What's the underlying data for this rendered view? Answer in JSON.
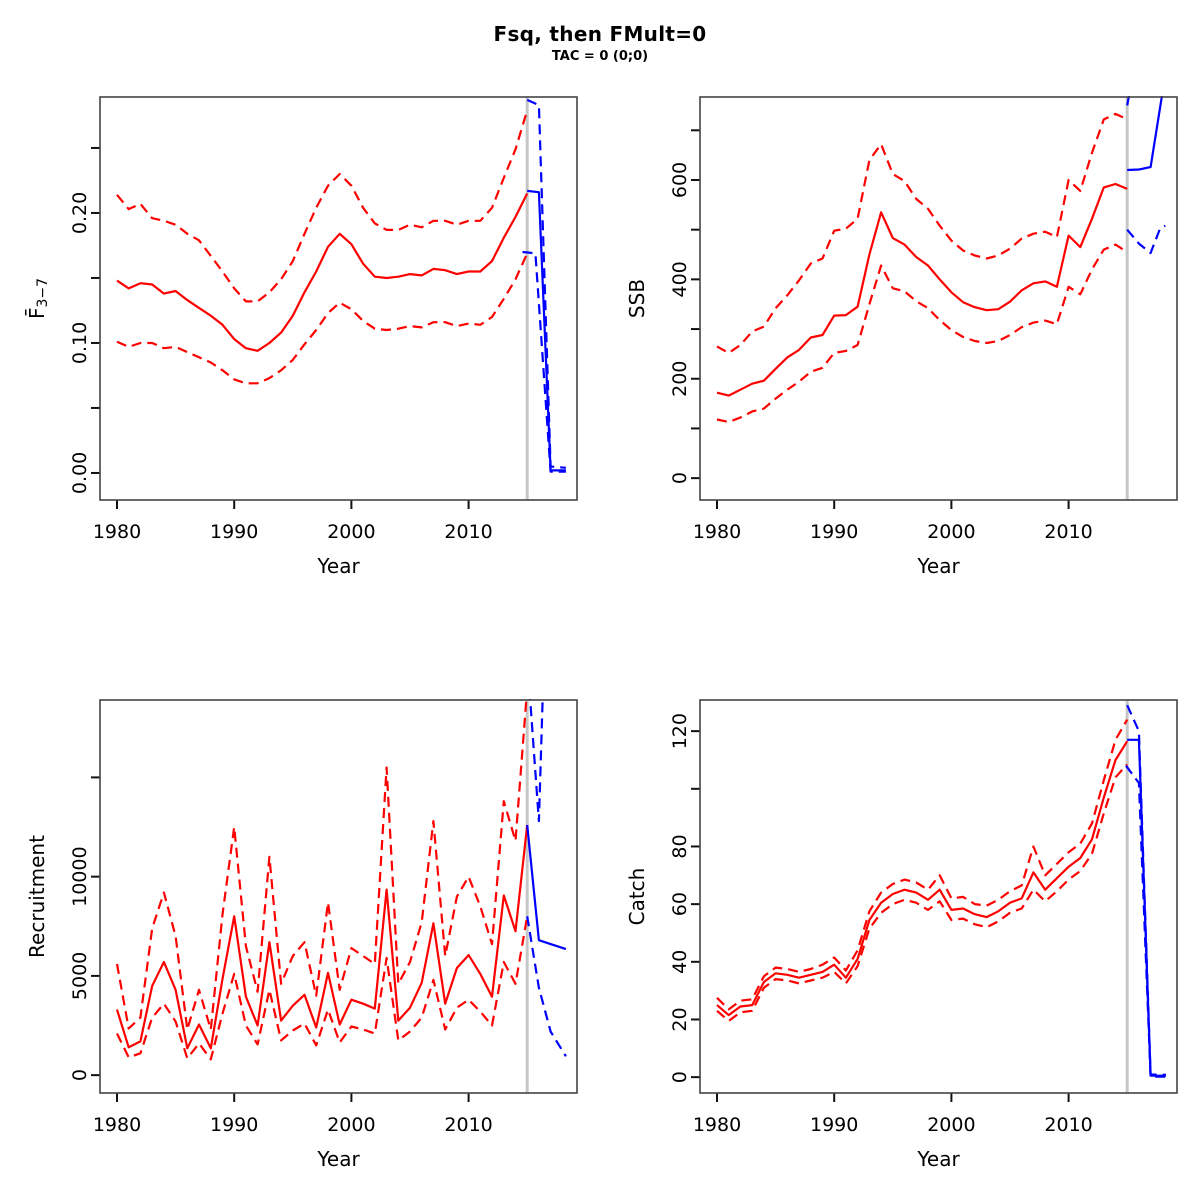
{
  "title": "Fsq, then FMult=0",
  "subtitle": "TAC = 0 (0;0)",
  "colors": {
    "history_line": "#ff0000",
    "projection_line": "#0000ff",
    "divider_line": "#c6c6c6",
    "frame": "#444444",
    "tick": "#111111",
    "text": "#000000",
    "background": "#ffffff"
  },
  "years_history": [
    1980,
    1981,
    1982,
    1983,
    1984,
    1985,
    1986,
    1987,
    1988,
    1989,
    1990,
    1991,
    1992,
    1993,
    1994,
    1995,
    1996,
    1997,
    1998,
    1999,
    2000,
    2001,
    2002,
    2003,
    2004,
    2005,
    2006,
    2007,
    2008,
    2009,
    2010,
    2011,
    2012,
    2013,
    2014,
    2015
  ],
  "chart_data": [
    {
      "id": "fbar",
      "type": "line",
      "ylabel": "F̄",
      "ylabel_sub": "3−7",
      "xlabel": "Year",
      "xlim": [
        1978.55,
        2019.25
      ],
      "ylim": [
        -0.0208,
        0.2892
      ],
      "divider_x": 2015,
      "xticks": [
        {
          "v": 1980,
          "label": "1980"
        },
        {
          "v": 1990,
          "label": "1990"
        },
        {
          "v": 2000,
          "label": "2000"
        },
        {
          "v": 2010,
          "label": "2010"
        }
      ],
      "yticks": [
        {
          "v": 0,
          "label": "0.00"
        },
        {
          "v": 0.05,
          "label": ""
        },
        {
          "v": 0.1,
          "label": "0.10"
        },
        {
          "v": 0.15,
          "label": ""
        },
        {
          "v": 0.2,
          "label": "0.20"
        },
        {
          "v": 0.25,
          "label": ""
        }
      ],
      "series": [
        {
          "name": "fbar-median-history",
          "role": "history",
          "line": "solid",
          "values": [
            0.148,
            0.142,
            0.146,
            0.145,
            0.138,
            0.14,
            0.133,
            0.127,
            0.121,
            0.114,
            0.103,
            0.096,
            0.094,
            0.1,
            0.108,
            0.121,
            0.139,
            0.155,
            0.174,
            0.184,
            0.176,
            0.161,
            0.151,
            0.15,
            0.151,
            0.153,
            0.152,
            0.157,
            0.156,
            0.153,
            0.155,
            0.155,
            0.163,
            0.181,
            0.197,
            0.215
          ]
        },
        {
          "name": "fbar-upper-history",
          "role": "history",
          "line": "dashed",
          "values": [
            0.214,
            0.203,
            0.207,
            0.196,
            0.194,
            0.191,
            0.184,
            0.179,
            0.167,
            0.155,
            0.142,
            0.132,
            0.132,
            0.139,
            0.149,
            0.163,
            0.184,
            0.204,
            0.221,
            0.23,
            0.221,
            0.204,
            0.192,
            0.187,
            0.187,
            0.191,
            0.189,
            0.194,
            0.194,
            0.191,
            0.194,
            0.194,
            0.204,
            0.227,
            0.249,
            0.279
          ]
        },
        {
          "name": "fbar-lower-history",
          "role": "history",
          "line": "dashed",
          "values": [
            0.101,
            0.097,
            0.1,
            0.1,
            0.096,
            0.097,
            0.093,
            0.089,
            0.085,
            0.079,
            0.072,
            0.069,
            0.069,
            0.073,
            0.079,
            0.087,
            0.099,
            0.11,
            0.123,
            0.131,
            0.126,
            0.117,
            0.111,
            0.11,
            0.111,
            0.113,
            0.112,
            0.116,
            0.116,
            0.113,
            0.115,
            0.114,
            0.12,
            0.134,
            0.149,
            0.169
          ]
        },
        {
          "name": "fbar-median-projection",
          "role": "projection",
          "line": "solid",
          "points": [
            [
              2015,
              0.217
            ],
            [
              2016,
              0.216
            ],
            [
              2017,
              0.002
            ],
            [
              2018.3,
              0.002
            ]
          ]
        },
        {
          "name": "fbar-upper-projection",
          "role": "projection",
          "line": "dashed",
          "points": [
            [
              2015,
              0.287
            ],
            [
              2016,
              0.283
            ],
            [
              2017,
              0.005
            ],
            [
              2018.3,
              0.004
            ]
          ]
        },
        {
          "name": "fbar-lower-projection",
          "role": "projection",
          "line": "dashed",
          "points": [
            [
              2014.6,
              0.17
            ],
            [
              2015.7,
              0.169
            ],
            [
              2017,
              0.001
            ],
            [
              2018.3,
              0.001
            ]
          ]
        }
      ]
    },
    {
      "id": "ssb",
      "type": "line",
      "ylabel": "SSB",
      "ylabel_sub": "",
      "xlabel": "Year",
      "xlim": [
        1978.55,
        2019.25
      ],
      "ylim": [
        -44,
        767
      ],
      "divider_x": 2015,
      "xticks": [
        {
          "v": 1980,
          "label": "1980"
        },
        {
          "v": 1990,
          "label": "1990"
        },
        {
          "v": 2000,
          "label": "2000"
        },
        {
          "v": 2010,
          "label": "2010"
        }
      ],
      "yticks": [
        {
          "v": 0,
          "label": "0"
        },
        {
          "v": 100,
          "label": ""
        },
        {
          "v": 200,
          "label": "200"
        },
        {
          "v": 300,
          "label": ""
        },
        {
          "v": 400,
          "label": "400"
        },
        {
          "v": 500,
          "label": ""
        },
        {
          "v": 600,
          "label": "600"
        },
        {
          "v": 700,
          "label": ""
        }
      ],
      "series": [
        {
          "name": "ssb-median-history",
          "role": "history",
          "line": "solid",
          "values": [
            172,
            166,
            178,
            190,
            196,
            220,
            243,
            258,
            283,
            288,
            327,
            328,
            345,
            450,
            535,
            483,
            470,
            445,
            428,
            400,
            374,
            354,
            344,
            338,
            340,
            355,
            378,
            392,
            396,
            385,
            488,
            465,
            522,
            585,
            592,
            582
          ]
        },
        {
          "name": "ssb-upper-history",
          "role": "history",
          "line": "dashed",
          "values": [
            265,
            252,
            268,
            295,
            305,
            342,
            368,
            398,
            432,
            442,
            498,
            502,
            522,
            640,
            672,
            612,
            598,
            562,
            542,
            508,
            478,
            458,
            448,
            442,
            448,
            462,
            482,
            492,
            496,
            485,
            600,
            578,
            655,
            722,
            733,
            722
          ]
        },
        {
          "name": "ssb-lower-history",
          "role": "history",
          "line": "dashed",
          "values": [
            118,
            113,
            122,
            134,
            140,
            160,
            178,
            194,
            214,
            222,
            252,
            256,
            268,
            350,
            428,
            382,
            376,
            356,
            342,
            318,
            298,
            284,
            276,
            272,
            276,
            288,
            304,
            313,
            317,
            310,
            385,
            370,
            420,
            460,
            470,
            455
          ]
        },
        {
          "name": "ssb-median-projection",
          "role": "projection",
          "line": "solid",
          "points": [
            [
              2015,
              620
            ],
            [
              2016,
              621
            ],
            [
              2017,
              626
            ],
            [
              2018,
              775
            ]
          ]
        },
        {
          "name": "ssb-upper-projection",
          "role": "projection",
          "line": "dashed",
          "points": [
            [
              2015,
              750
            ],
            [
              2015.55,
              820
            ]
          ]
        },
        {
          "name": "ssb-lower-projection",
          "role": "projection",
          "line": "dashed",
          "points": [
            [
              2015,
              500
            ],
            [
              2016,
              472
            ],
            [
              2017,
              453
            ],
            [
              2017.8,
              502
            ],
            [
              2018.25,
              508
            ]
          ]
        }
      ]
    },
    {
      "id": "recruitment",
      "type": "line",
      "ylabel": "Recruitment",
      "ylabel_sub": "",
      "xlabel": "Year",
      "xlim": [
        1978.55,
        2019.25
      ],
      "ylim": [
        -900,
        18900
      ],
      "divider_x": 2015,
      "xticks": [
        {
          "v": 1980,
          "label": "1980"
        },
        {
          "v": 1990,
          "label": "1990"
        },
        {
          "v": 2000,
          "label": "2000"
        },
        {
          "v": 2010,
          "label": "2010"
        }
      ],
      "yticks": [
        {
          "v": 0,
          "label": "0"
        },
        {
          "v": 5000,
          "label": "5000"
        },
        {
          "v": 10000,
          "label": "10000"
        },
        {
          "v": 15000,
          "label": ""
        }
      ],
      "series": [
        {
          "name": "recruitment-median-history",
          "role": "history",
          "line": "solid",
          "values": [
            3300,
            1400,
            1700,
            4500,
            5700,
            4300,
            1350,
            2550,
            1350,
            4850,
            8000,
            3950,
            2500,
            6700,
            2750,
            3500,
            4050,
            2400,
            5150,
            2550,
            3800,
            3600,
            3350,
            9350,
            2750,
            3400,
            4650,
            7650,
            3600,
            5400,
            6050,
            5100,
            3950,
            9050,
            7250,
            12600
          ]
        },
        {
          "name": "recruitment-upper-history",
          "role": "history",
          "line": "dashed",
          "values": [
            5600,
            2350,
            2900,
            7400,
            9200,
            7000,
            2300,
            4300,
            2300,
            8100,
            12500,
            6500,
            4200,
            11000,
            4600,
            6000,
            6700,
            4000,
            8700,
            4300,
            6400,
            6000,
            5600,
            15500,
            4600,
            5700,
            7700,
            12800,
            6000,
            9000,
            10000,
            8500,
            6600,
            13800,
            11800,
            19500
          ]
        },
        {
          "name": "recruitment-lower-history",
          "role": "history",
          "line": "dashed",
          "values": [
            2100,
            900,
            1100,
            2900,
            3600,
            2700,
            850,
            1600,
            800,
            3100,
            5100,
            2500,
            1550,
            4300,
            1750,
            2250,
            2600,
            1500,
            3300,
            1650,
            2450,
            2300,
            2100,
            5900,
            1750,
            2200,
            2900,
            4800,
            2300,
            3400,
            3800,
            3200,
            2500,
            5700,
            4600,
            8000
          ]
        },
        {
          "name": "recruitment-median-projection",
          "role": "projection",
          "line": "solid",
          "points": [
            [
              2015,
              12600
            ],
            [
              2016,
              6800
            ],
            [
              2017,
              6600
            ],
            [
              2018.3,
              6350
            ]
          ]
        },
        {
          "name": "recruitment-upper-projection",
          "role": "projection",
          "line": "dashed",
          "points": [
            [
              2015,
              21000
            ],
            [
              2016,
              12800
            ],
            [
              2017,
              32000
            ],
            [
              2018.3,
              32000
            ]
          ]
        },
        {
          "name": "recruitment-lower-projection",
          "role": "projection",
          "line": "dashed",
          "points": [
            [
              2015,
              8000
            ],
            [
              2016,
              4400
            ],
            [
              2017,
              2200
            ],
            [
              2018.3,
              950
            ]
          ]
        }
      ]
    },
    {
      "id": "catch",
      "type": "line",
      "ylabel": "Catch",
      "ylabel_sub": "",
      "xlabel": "Year",
      "xlim": [
        1978.55,
        2019.25
      ],
      "ylim": [
        -5.5,
        130.8
      ],
      "divider_x": 2015,
      "xticks": [
        {
          "v": 1980,
          "label": "1980"
        },
        {
          "v": 1990,
          "label": "1990"
        },
        {
          "v": 2000,
          "label": "2000"
        },
        {
          "v": 2010,
          "label": "2010"
        }
      ],
      "yticks": [
        {
          "v": 0,
          "label": "0"
        },
        {
          "v": 20,
          "label": "20"
        },
        {
          "v": 40,
          "label": "40"
        },
        {
          "v": 60,
          "label": "60"
        },
        {
          "v": 80,
          "label": "80"
        },
        {
          "v": 100,
          "label": ""
        },
        {
          "v": 120,
          "label": "120"
        }
      ],
      "series": [
        {
          "name": "catch-median-history",
          "role": "history",
          "line": "solid",
          "values": [
            25.0,
            21.5,
            24.5,
            25.0,
            33.0,
            36.0,
            35.5,
            34.5,
            35.5,
            36.5,
            39.0,
            34.5,
            41.0,
            54.5,
            60.5,
            63.5,
            65.0,
            64.0,
            61.5,
            65.0,
            58.0,
            58.5,
            56.5,
            55.5,
            57.5,
            60.5,
            62.0,
            71.0,
            65.0,
            69.0,
            73.0,
            76.0,
            82.5,
            97.0,
            110.0,
            116.5
          ]
        },
        {
          "name": "catch-upper-history",
          "role": "history",
          "line": "dashed",
          "values": [
            27.5,
            23.5,
            26.5,
            27.0,
            35.0,
            38.0,
            37.5,
            36.5,
            37.5,
            39.0,
            41.5,
            37.0,
            44.0,
            57.5,
            64.0,
            67.0,
            68.5,
            67.5,
            65.0,
            70.0,
            62.0,
            62.5,
            60.0,
            59.5,
            61.5,
            64.5,
            66.5,
            80.0,
            70.0,
            74.0,
            78.0,
            81.0,
            88.0,
            103.0,
            117.0,
            124.0
          ]
        },
        {
          "name": "catch-lower-history",
          "role": "history",
          "line": "dashed",
          "values": [
            23.0,
            19.5,
            22.5,
            23.0,
            31.0,
            34.0,
            33.5,
            32.5,
            33.5,
            34.5,
            36.5,
            32.5,
            38.5,
            51.5,
            57.0,
            60.0,
            61.5,
            60.5,
            58.0,
            61.0,
            54.5,
            55.0,
            53.0,
            52.0,
            54.0,
            57.0,
            58.5,
            65.0,
            61.0,
            64.5,
            68.5,
            71.5,
            77.5,
            91.5,
            104.0,
            108.5
          ]
        },
        {
          "name": "catch-median-projection",
          "role": "projection",
          "line": "solid",
          "points": [
            [
              2015,
              117
            ],
            [
              2016,
              117
            ],
            [
              2017,
              0.5
            ],
            [
              2018.3,
              0.5
            ]
          ]
        },
        {
          "name": "catch-upper-projection",
          "role": "projection",
          "line": "dashed",
          "points": [
            [
              2015,
              129
            ],
            [
              2016,
              120
            ],
            [
              2017,
              0.9
            ],
            [
              2018.3,
              0.8
            ]
          ]
        },
        {
          "name": "catch-lower-projection",
          "role": "projection",
          "line": "dashed",
          "points": [
            [
              2014.9,
              108
            ],
            [
              2016,
              102
            ],
            [
              2017,
              0.2
            ],
            [
              2018.3,
              0.2
            ]
          ]
        }
      ]
    }
  ]
}
